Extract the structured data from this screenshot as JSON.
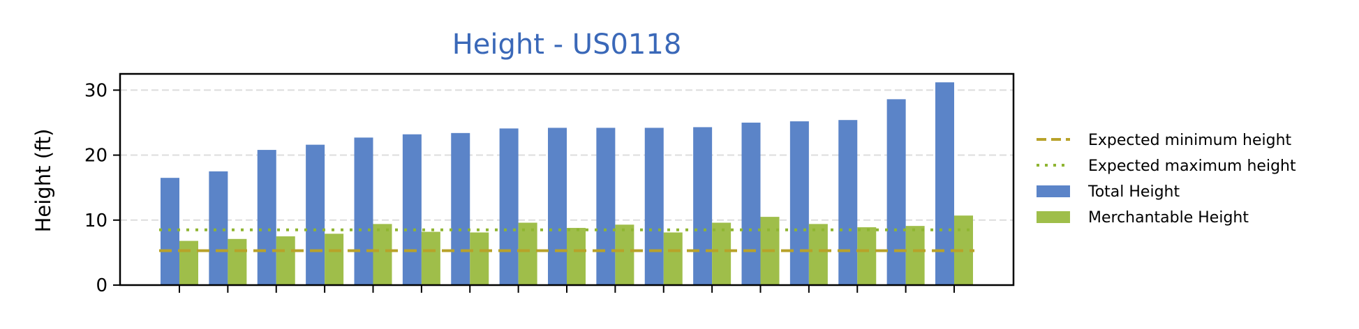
{
  "chart_data": {
    "type": "bar",
    "title": "Height - US0118",
    "xlabel": "",
    "ylabel": "Height (ft)",
    "ylim": [
      0,
      32.5
    ],
    "yticks": [
      0,
      10,
      20,
      30
    ],
    "grid": "horizontal dashed",
    "legend_position": "right",
    "categories_count": 17,
    "series": [
      {
        "name": "Total Height",
        "color": "#5b84c8",
        "values": [
          16.5,
          17.5,
          20.8,
          21.6,
          22.7,
          23.2,
          23.4,
          24.1,
          24.2,
          24.2,
          24.2,
          24.3,
          25.0,
          25.2,
          25.4,
          28.6,
          31.2
        ]
      },
      {
        "name": "Merchantable Height",
        "color": "#9fbe4a",
        "values": [
          6.8,
          7.1,
          7.5,
          7.9,
          9.4,
          8.2,
          8.1,
          9.6,
          8.8,
          9.3,
          8.1,
          9.6,
          10.5,
          9.4,
          8.9,
          9.1,
          10.7
        ]
      }
    ],
    "reference_lines": [
      {
        "name": "Expected minimum height",
        "value": 5.3,
        "color": "#b8a22a",
        "style": "dashed"
      },
      {
        "name": "Expected maximum height",
        "value": 8.5,
        "color": "#8fb532",
        "style": "dotted"
      }
    ],
    "legend": {
      "items": [
        {
          "label": "Expected minimum height",
          "kind": "dashed-line",
          "color": "#b8a22a"
        },
        {
          "label": "Expected maximum height",
          "kind": "dotted-line",
          "color": "#8fb532"
        },
        {
          "label": "Total Height",
          "kind": "patch",
          "color": "#5b84c8"
        },
        {
          "label": "Merchantable Height",
          "kind": "patch",
          "color": "#9fbe4a"
        }
      ]
    }
  }
}
